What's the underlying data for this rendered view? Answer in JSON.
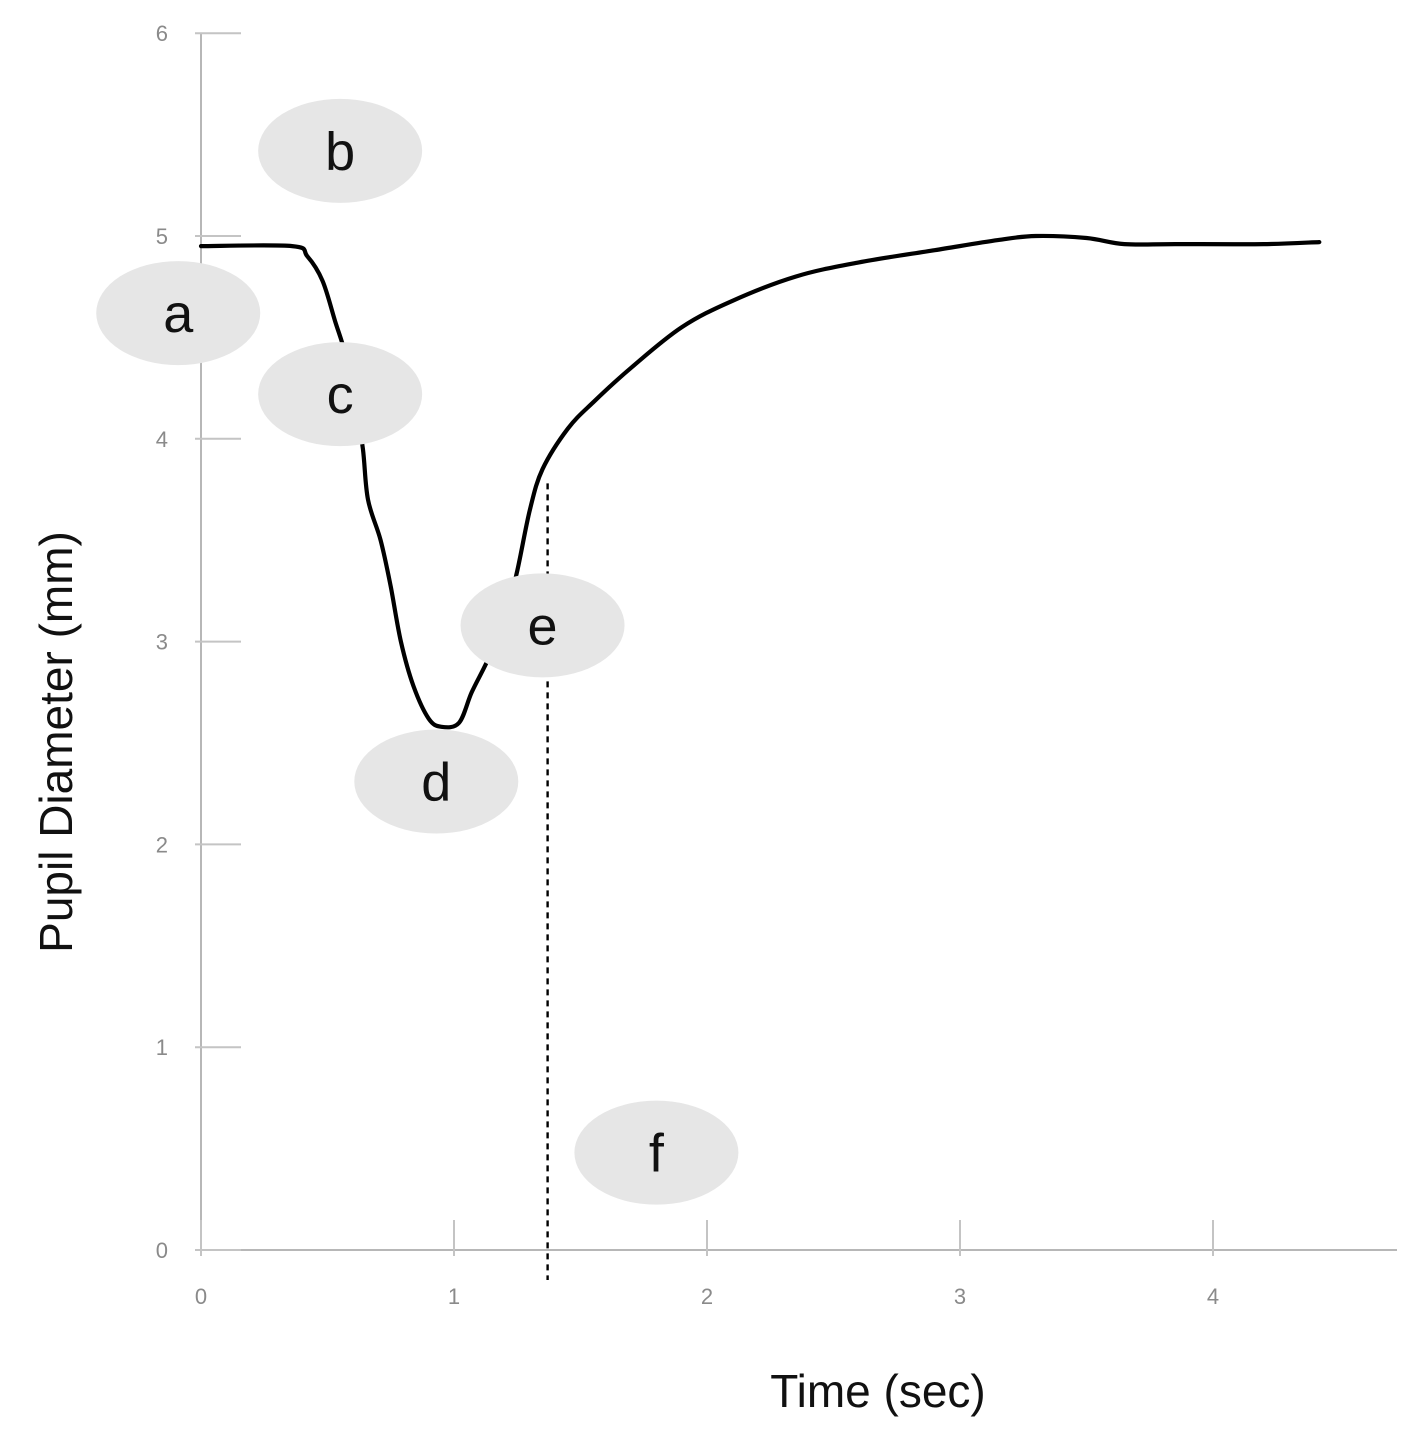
{
  "chart_data": {
    "type": "line",
    "xlabel": "Time (sec)",
    "ylabel": "Pupil Diameter (mm)",
    "xlim": [
      0,
      4.73
    ],
    "ylim": [
      0,
      6
    ],
    "x_ticks": [
      "0",
      "1",
      "2",
      "3",
      "4"
    ],
    "y_ticks": [
      "0",
      "1",
      "2",
      "3",
      "4",
      "5",
      "6"
    ],
    "grid": false,
    "line_color": "#000000",
    "series": [
      {
        "values": [
          [
            0.0,
            4.95
          ],
          [
            0.36,
            4.95
          ],
          [
            0.42,
            4.9
          ],
          [
            0.48,
            4.78
          ],
          [
            0.53,
            4.58
          ],
          [
            0.57,
            4.42
          ],
          [
            0.61,
            4.18
          ],
          [
            0.64,
            3.95
          ],
          [
            0.66,
            3.7
          ],
          [
            0.71,
            3.5
          ],
          [
            0.75,
            3.27
          ],
          [
            0.79,
            3.0
          ],
          [
            0.84,
            2.78
          ],
          [
            0.9,
            2.62
          ],
          [
            0.95,
            2.58
          ],
          [
            1.02,
            2.6
          ],
          [
            1.07,
            2.75
          ],
          [
            1.13,
            2.9
          ],
          [
            1.2,
            3.1
          ],
          [
            1.25,
            3.35
          ],
          [
            1.3,
            3.65
          ],
          [
            1.35,
            3.85
          ],
          [
            1.45,
            4.05
          ],
          [
            1.55,
            4.18
          ],
          [
            1.7,
            4.35
          ],
          [
            1.9,
            4.55
          ],
          [
            2.1,
            4.68
          ],
          [
            2.35,
            4.8
          ],
          [
            2.6,
            4.87
          ],
          [
            2.9,
            4.93
          ],
          [
            3.15,
            4.98
          ],
          [
            3.3,
            5.0
          ],
          [
            3.5,
            4.99
          ],
          [
            3.65,
            4.96
          ],
          [
            3.85,
            4.96
          ],
          [
            4.2,
            4.96
          ],
          [
            4.42,
            4.97
          ]
        ]
      }
    ],
    "reference_lines": [
      {
        "orientation": "vertical",
        "x": 1.37,
        "from_y": 3.78,
        "style": "dashed"
      }
    ],
    "annotations": [
      {
        "label": "a",
        "x": -0.09,
        "y": 4.62
      },
      {
        "label": "b",
        "x": 0.55,
        "y": 5.42
      },
      {
        "label": "c",
        "x": 0.55,
        "y": 4.22
      },
      {
        "label": "d",
        "x": 0.93,
        "y": 2.31
      },
      {
        "label": "e",
        "x": 1.35,
        "y": 3.08
      },
      {
        "label": "f",
        "x": 1.8,
        "y": 0.48
      }
    ]
  }
}
